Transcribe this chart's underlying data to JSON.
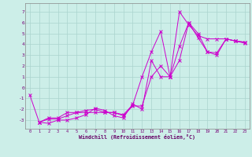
{
  "xlabel": "Windchill (Refroidissement éolien,°C)",
  "bg_color": "#cceee8",
  "grid_color": "#aad4ce",
  "line_color": "#cc00cc",
  "yticks": [
    -3,
    -2,
    -1,
    0,
    1,
    2,
    3,
    4,
    5,
    6,
    7
  ],
  "xticks": [
    0,
    1,
    2,
    3,
    4,
    5,
    6,
    7,
    8,
    9,
    10,
    11,
    12,
    13,
    14,
    15,
    16,
    17,
    18,
    19,
    20,
    21,
    22,
    23
  ],
  "line1_x": [
    0,
    1,
    2,
    3,
    4,
    5,
    6,
    7,
    8,
    9,
    10,
    11,
    12,
    13,
    14,
    15,
    16,
    17,
    18,
    19,
    20,
    21,
    22,
    23
  ],
  "line1_y": [
    -0.7,
    -3.2,
    -2.8,
    -2.8,
    -2.3,
    -2.3,
    -2.3,
    -2.3,
    -2.3,
    -2.3,
    -2.5,
    -1.6,
    1.0,
    3.3,
    5.2,
    1.0,
    7.0,
    5.8,
    4.8,
    4.5,
    4.5,
    4.5,
    4.3,
    4.2
  ],
  "line2_x": [
    1,
    2,
    3,
    4,
    5,
    6,
    7,
    8,
    9,
    10,
    11,
    12,
    13,
    14,
    15,
    16,
    17,
    18,
    19,
    20,
    21,
    22,
    23
  ],
  "line2_y": [
    -3.2,
    -3.3,
    -3.0,
    -3.0,
    -2.8,
    -2.5,
    -1.9,
    -2.1,
    -2.6,
    -2.8,
    -1.5,
    -2.0,
    2.5,
    1.0,
    1.0,
    3.8,
    6.0,
    5.0,
    3.3,
    3.0,
    4.5,
    4.3,
    4.1
  ],
  "line3_x": [
    1,
    2,
    3,
    4,
    5,
    6,
    7,
    8,
    9,
    10,
    11,
    12,
    13,
    14,
    15,
    16,
    17,
    18,
    19,
    20,
    21,
    22,
    23
  ],
  "line3_y": [
    -3.2,
    -2.9,
    -2.9,
    -2.6,
    -2.3,
    -2.1,
    -2.0,
    -2.3,
    -2.3,
    -2.6,
    -1.7,
    -1.7,
    1.0,
    2.0,
    1.0,
    2.5,
    6.0,
    4.6,
    3.3,
    3.2,
    4.5,
    4.3,
    4.2
  ]
}
